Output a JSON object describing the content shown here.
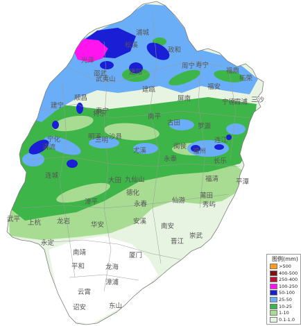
{
  "colors": {
    "background": "#ffffff",
    "boundary": "#9a9a9a",
    "under_0_1": "#ffffff",
    "r_0_1_1": "#e8f4e2",
    "r_1_10": "#a8dc92",
    "r_10_25": "#3eb548",
    "r_25_50": "#6aaef7",
    "r_50_100": "#1a1fd6",
    "r_100_250": "#ff14f0",
    "r_250_400": "#bf1238",
    "r_400_500": "#7f0f16",
    "r_over_500": "#ff9c18"
  },
  "cities": [
    "浦城",
    "松溪",
    "光泽",
    "武夷山",
    "政和",
    "寿宁",
    "福鼎",
    "邵武",
    "建阳",
    "周宁",
    "柘荣",
    "霞浦",
    "建瓯",
    "福安",
    "顺昌",
    "泰宁",
    "屏南",
    "宁德",
    "三沙",
    "建宁",
    "将乐",
    "古田",
    "罗源",
    "明溪",
    "沙县",
    "南平",
    "连江",
    "宁化",
    "三明",
    "尤溪",
    "闽侯",
    "福州",
    "长乐",
    "清流",
    "永泰",
    "福清",
    "连城",
    "大田",
    "九仙山",
    "平潭",
    "德化",
    "莆田",
    "永春",
    "仙游",
    "漳平",
    "秀屿",
    "武平",
    "上杭",
    "龙岩",
    "华安",
    "安溪",
    "南安",
    "晋江",
    "崇武",
    "永定",
    "南靖",
    "厦门",
    "平和",
    "龙海",
    "漳浦",
    "云霄",
    "东山",
    "诏安"
  ],
  "legend": {
    "title": "图例(mm)",
    "items": [
      {
        "label": ">500",
        "color_key": "r_over_500"
      },
      {
        "label": "400-500",
        "color_key": "r_400_500"
      },
      {
        "label": "250-400",
        "color_key": "r_250_400"
      },
      {
        "label": "100-250",
        "color_key": "r_100_250"
      },
      {
        "label": "50-100",
        "color_key": "r_50_100"
      },
      {
        "label": "25-50",
        "color_key": "r_25_50"
      },
      {
        "label": "10-25",
        "color_key": "r_10_25"
      },
      {
        "label": "1-10",
        "color_key": "r_1_10"
      },
      {
        "label": "0.1-1.0",
        "color_key": "r_0_1_1"
      }
    ]
  }
}
